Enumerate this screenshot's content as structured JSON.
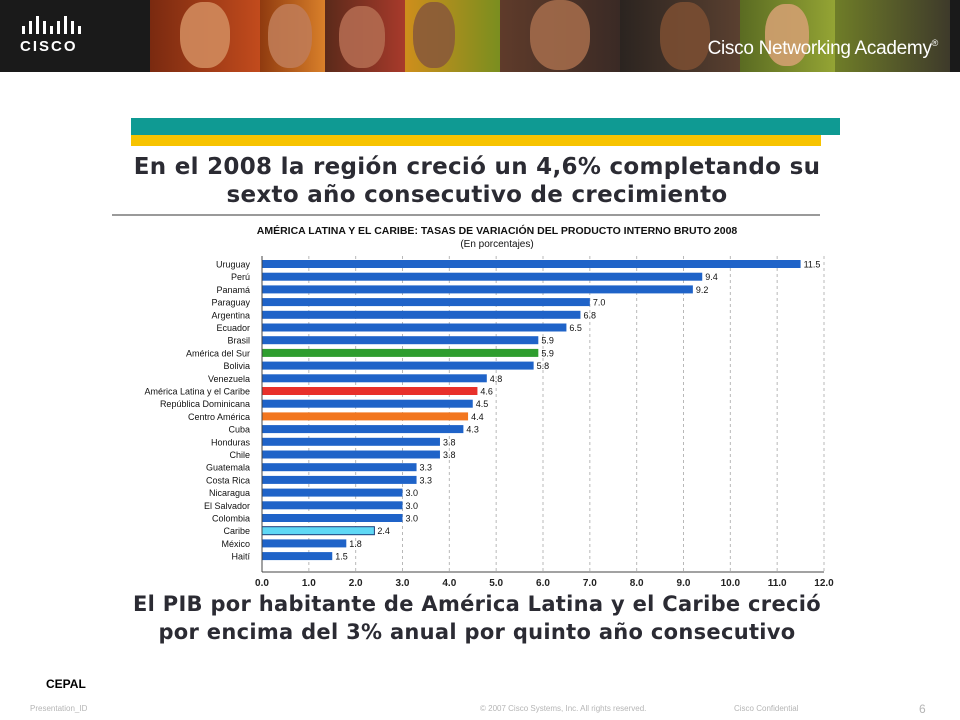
{
  "header": {
    "logo_text": "CISCO",
    "academy_title": "Cisco Networking Academy",
    "academy_reg": "®",
    "brand_colors": [
      "#1a1a1a",
      "#ffffff"
    ]
  },
  "slide": {
    "headline_line1": "En el 2008 la región creció un 4,6% completando su",
    "headline_line2": "sexto año consecutivo de crecimiento",
    "footer_line1": "El PIB por habitante de América Latina y el Caribe creció",
    "footer_line2": "por encima del 3% anual por quinto año consecutivo",
    "band_colors": [
      "#0f9a93",
      "#f7c300"
    ]
  },
  "chart_data": {
    "type": "bar",
    "orientation": "horizontal",
    "title": "AMÉRICA LATINA Y EL CARIBE: TASAS DE VARIACIÓN DEL PRODUCTO INTERNO BRUTO 2008",
    "subtitle": "(En porcentajes)",
    "categories": [
      "Uruguay",
      "Perú",
      "Panamá",
      "Paraguay",
      "Argentina",
      "Ecuador",
      "Brasil",
      "América del Sur",
      "Bolivia",
      "Venezuela",
      "América Latina y el Caribe",
      "República Dominicana",
      "Centro América",
      "Cuba",
      "Honduras",
      "Chile",
      "Guatemala",
      "Costa Rica",
      "Nicaragua",
      "El Salvador",
      "Colombia",
      "Caribe",
      "México",
      "Haití"
    ],
    "values": [
      11.5,
      9.4,
      9.2,
      7.0,
      6.8,
      6.5,
      5.9,
      5.9,
      5.8,
      4.8,
      4.6,
      4.5,
      4.4,
      4.3,
      3.8,
      3.8,
      3.3,
      3.3,
      3.0,
      3.0,
      3.0,
      2.4,
      1.8,
      1.5
    ],
    "value_labels": [
      "11.5",
      "9.4",
      "9.2",
      "7.0",
      "6.8",
      "6.5",
      "5.9",
      "5.9",
      "5.8",
      "4.8",
      "4.6",
      "4.5",
      "4.4",
      "4.3",
      "3.8",
      "3.8",
      "3.3",
      "3.3",
      "3.0",
      "3.0",
      "3.0",
      "2.4",
      "1.8",
      "1.5"
    ],
    "bar_colors": [
      "#1f63c8",
      "#1f63c8",
      "#1f63c8",
      "#1f63c8",
      "#1f63c8",
      "#1f63c8",
      "#1f63c8",
      "#2f9d2f",
      "#1f63c8",
      "#1f63c8",
      "#e8302a",
      "#1f63c8",
      "#f2761f",
      "#1f63c8",
      "#1f63c8",
      "#1f63c8",
      "#1f63c8",
      "#1f63c8",
      "#1f63c8",
      "#1f63c8",
      "#1f63c8",
      "#5fd8f5",
      "#1f63c8",
      "#1f63c8"
    ],
    "xticks": [
      "0.0",
      "1.0",
      "2.0",
      "3.0",
      "4.0",
      "5.0",
      "6.0",
      "7.0",
      "8.0",
      "9.0",
      "10.0",
      "11.0",
      "12.0"
    ],
    "xlim": [
      0,
      12
    ],
    "grid": "vertical-dashed",
    "xlabel": "",
    "ylabel": ""
  },
  "footer": {
    "source": "CEPAL",
    "presentation_id": "Presentation_ID",
    "copyright": "© 2007 Cisco Systems, Inc. All rights reserved.",
    "confidential": "Cisco Confidential",
    "page_number": "6"
  }
}
